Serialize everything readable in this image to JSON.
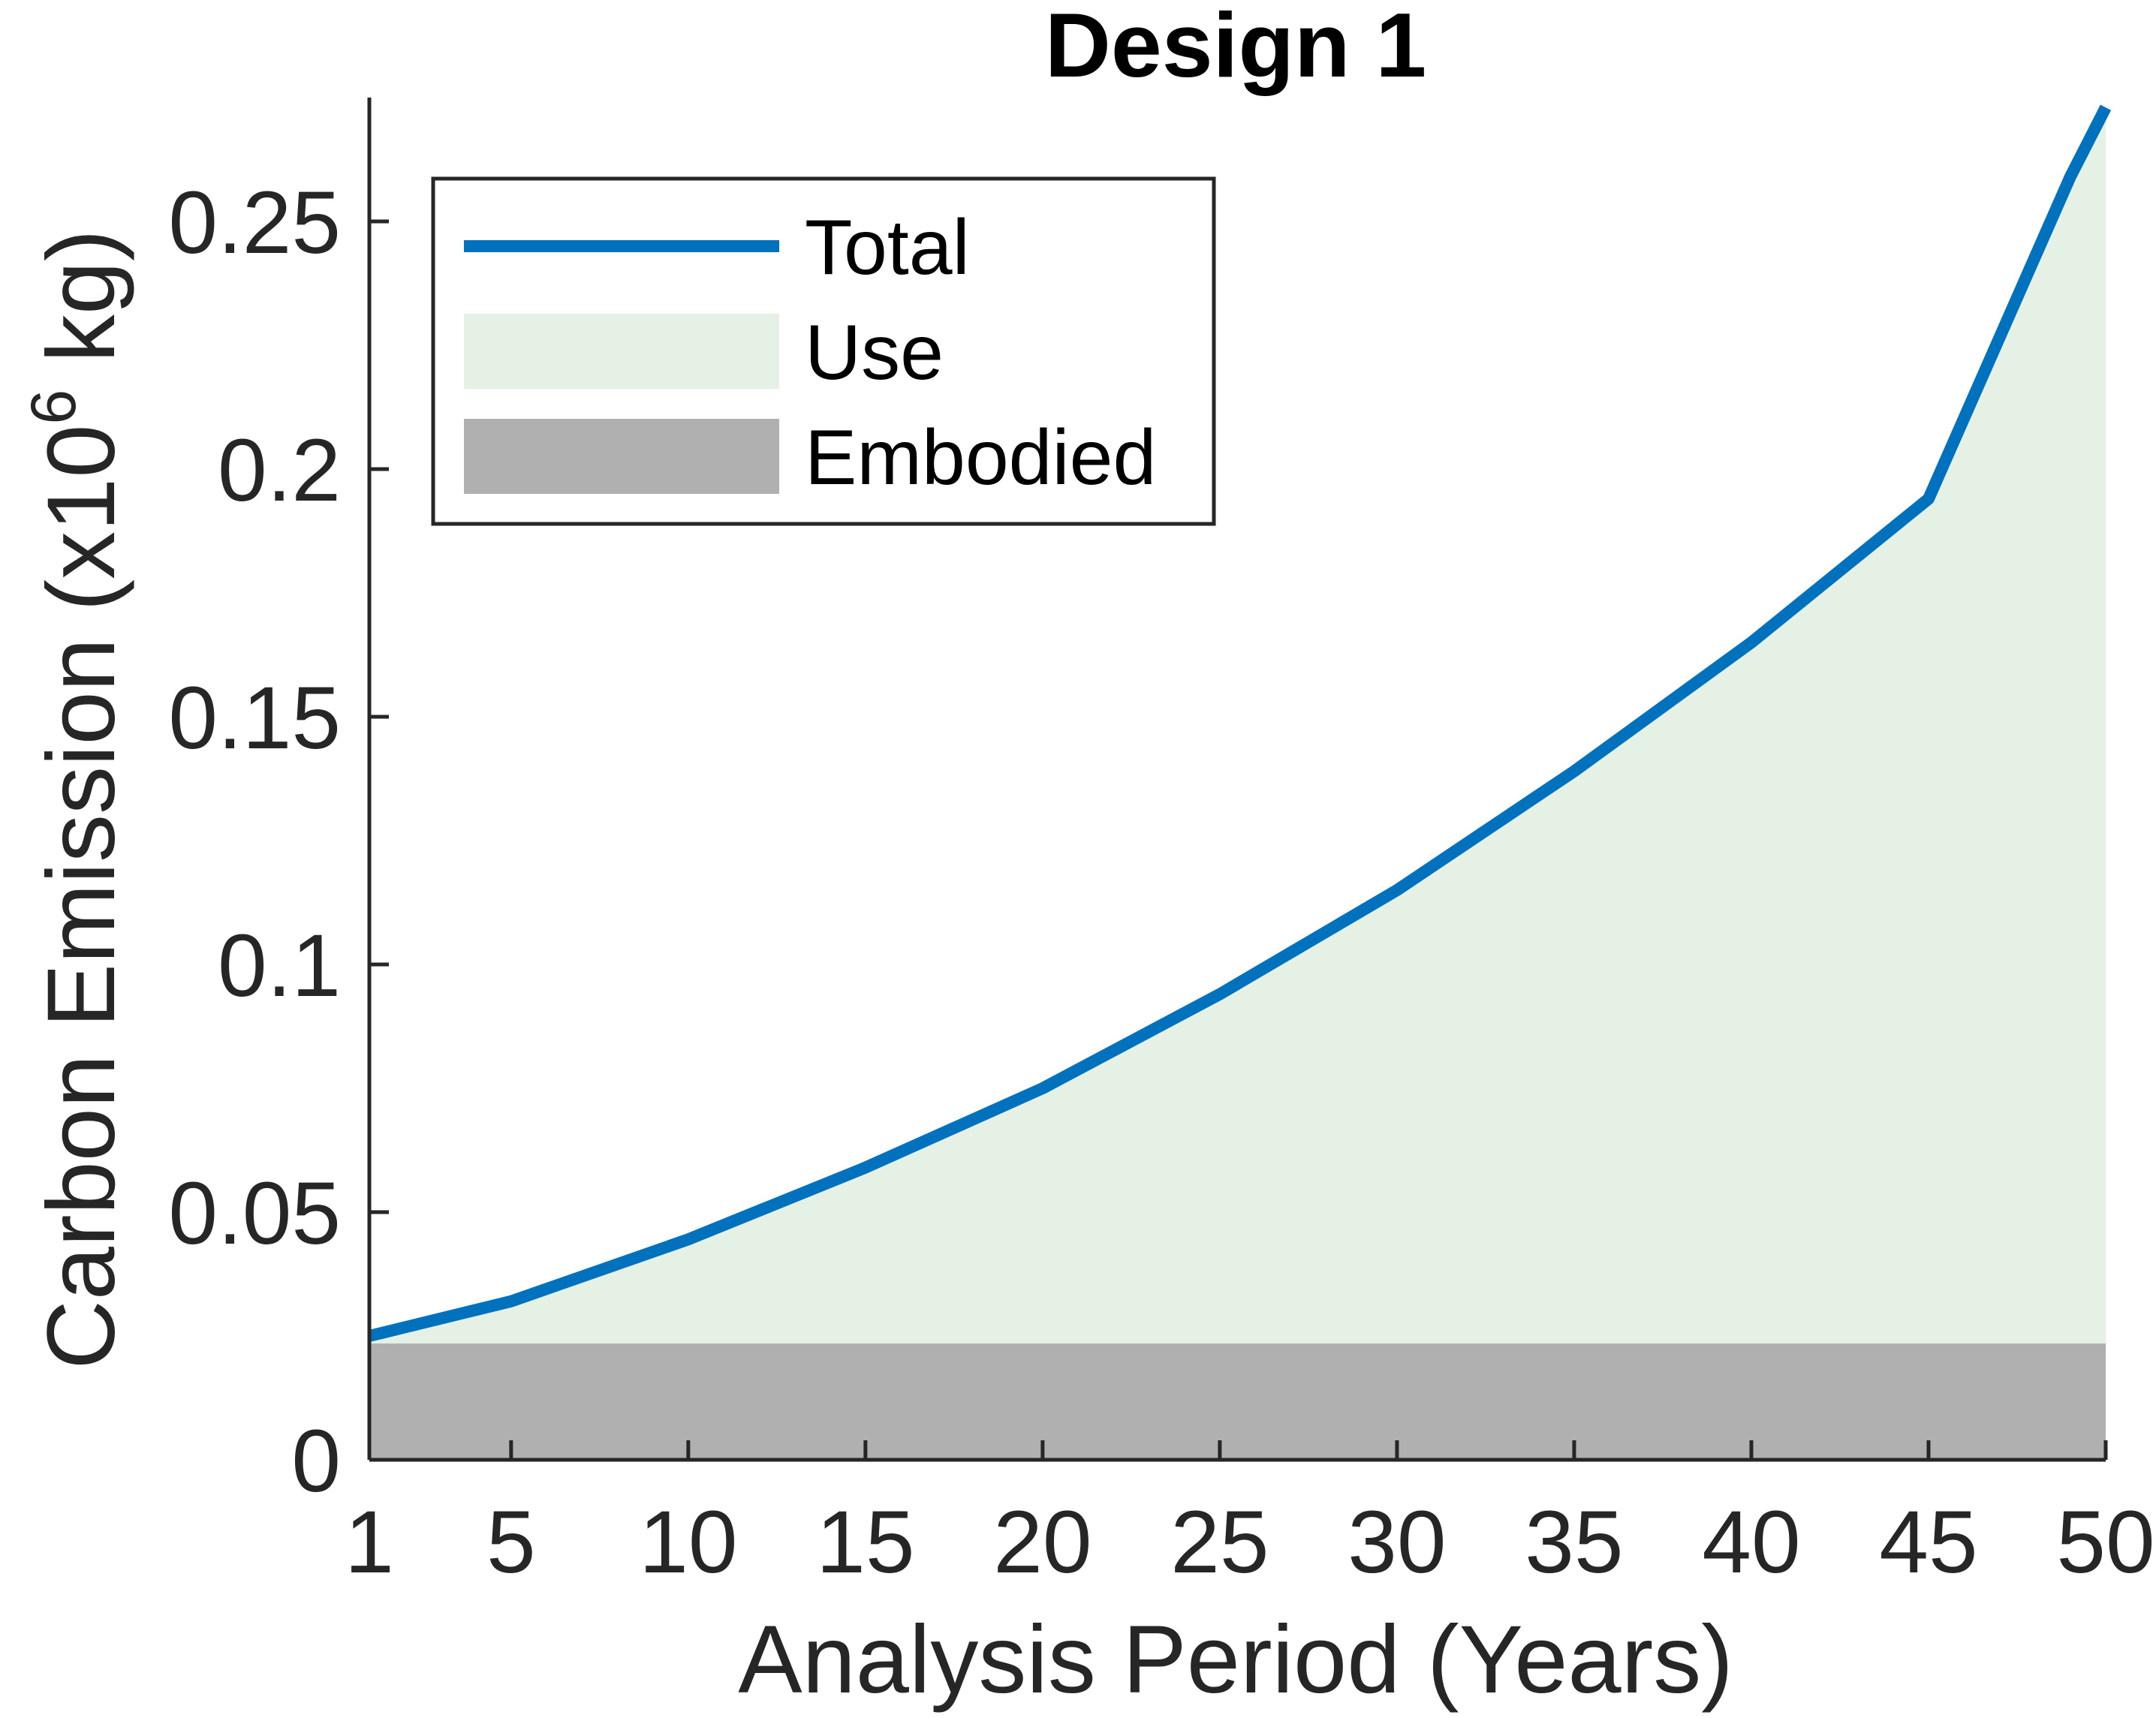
{
  "chart_data": {
    "type": "area",
    "title": "Design 1",
    "xlabel": "Analysis Period (Years)",
    "ylabel_main": "Carbon Emission (x10",
    "ylabel_sup": "6",
    "ylabel_tail": " kg)",
    "xlim": [
      1,
      50
    ],
    "ylim": [
      0,
      0.275
    ],
    "xticks": [
      1,
      5,
      10,
      15,
      20,
      25,
      30,
      35,
      40,
      45,
      50
    ],
    "xtick_labels": [
      "1",
      "5",
      "10",
      "15",
      "20",
      "25",
      "30",
      "35",
      "40",
      "45",
      "50"
    ],
    "yticks": [
      0,
      0.05,
      0.1,
      0.15,
      0.2,
      0.25
    ],
    "ytick_labels": [
      "0",
      "0.05",
      "0.1",
      "0.15",
      "0.2",
      "0.25"
    ],
    "grid": false,
    "legend_position": "top-left",
    "x": [
      1,
      5,
      10,
      15,
      20,
      25,
      30,
      35,
      40,
      45,
      49,
      50
    ],
    "series": [
      {
        "name": "Embodied",
        "kind": "area",
        "color": "#b0b0b0",
        "values": [
          0.0235,
          0.0235,
          0.0235,
          0.0235,
          0.0235,
          0.0235,
          0.0235,
          0.0235,
          0.0235,
          0.0235,
          0.0235,
          0.0235
        ]
      },
      {
        "name": "Use",
        "kind": "area",
        "color": "#e5f1e5",
        "values": [
          0.0015,
          0.0085,
          0.021,
          0.0355,
          0.0515,
          0.0705,
          0.0915,
          0.1155,
          0.1415,
          0.1705,
          0.2355,
          0.2495
        ]
      },
      {
        "name": "Total",
        "kind": "line",
        "color": "#0072bd",
        "values": [
          0.025,
          0.032,
          0.0445,
          0.059,
          0.075,
          0.094,
          0.115,
          0.139,
          0.165,
          0.194,
          0.259,
          0.273
        ]
      }
    ]
  }
}
